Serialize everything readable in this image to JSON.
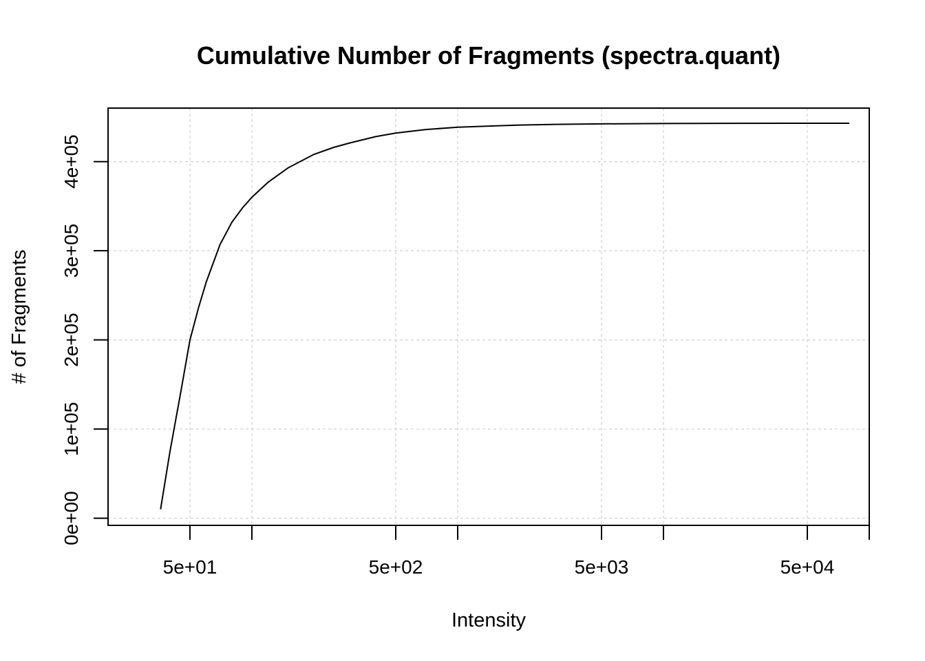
{
  "chart_data": {
    "type": "line",
    "title": "Cumulative Number of Fragments (spectra.quant)",
    "xlabel": "Intensity",
    "ylabel": "# of Fragments",
    "x_scale": "log",
    "xlim": [
      20,
      100000
    ],
    "ylim": [
      -8000,
      460000
    ],
    "x_ticks": [
      {
        "value": 50,
        "label": "5e+01"
      },
      {
        "value": 100,
        "label": ""
      },
      {
        "value": 500,
        "label": "5e+02"
      },
      {
        "value": 1000,
        "label": ""
      },
      {
        "value": 5000,
        "label": "5e+03"
      },
      {
        "value": 10000,
        "label": ""
      },
      {
        "value": 50000,
        "label": "5e+04"
      },
      {
        "value": 100000,
        "label": ""
      }
    ],
    "y_ticks": [
      {
        "value": 0,
        "label": "0e+00"
      },
      {
        "value": 100000,
        "label": "1e+05"
      },
      {
        "value": 200000,
        "label": "2e+05"
      },
      {
        "value": 300000,
        "label": "3e+05"
      },
      {
        "value": 400000,
        "label": "4e+05"
      }
    ],
    "grid": true,
    "series": [
      {
        "x": [
          36,
          40,
          45,
          50,
          55,
          60,
          70,
          80,
          90,
          100,
          120,
          150,
          200,
          250,
          300,
          400,
          500,
          700,
          1000,
          1500,
          2000,
          3000,
          5000,
          10000,
          20000,
          50000,
          80000
        ],
        "y": [
          10000,
          75000,
          140000,
          200000,
          236000,
          265000,
          307000,
          332000,
          348000,
          360000,
          377000,
          393000,
          408000,
          416000,
          421000,
          428000,
          432000,
          436000,
          438500,
          440000,
          441000,
          441800,
          442300,
          442700,
          442900,
          443000,
          443000
        ]
      }
    ]
  }
}
